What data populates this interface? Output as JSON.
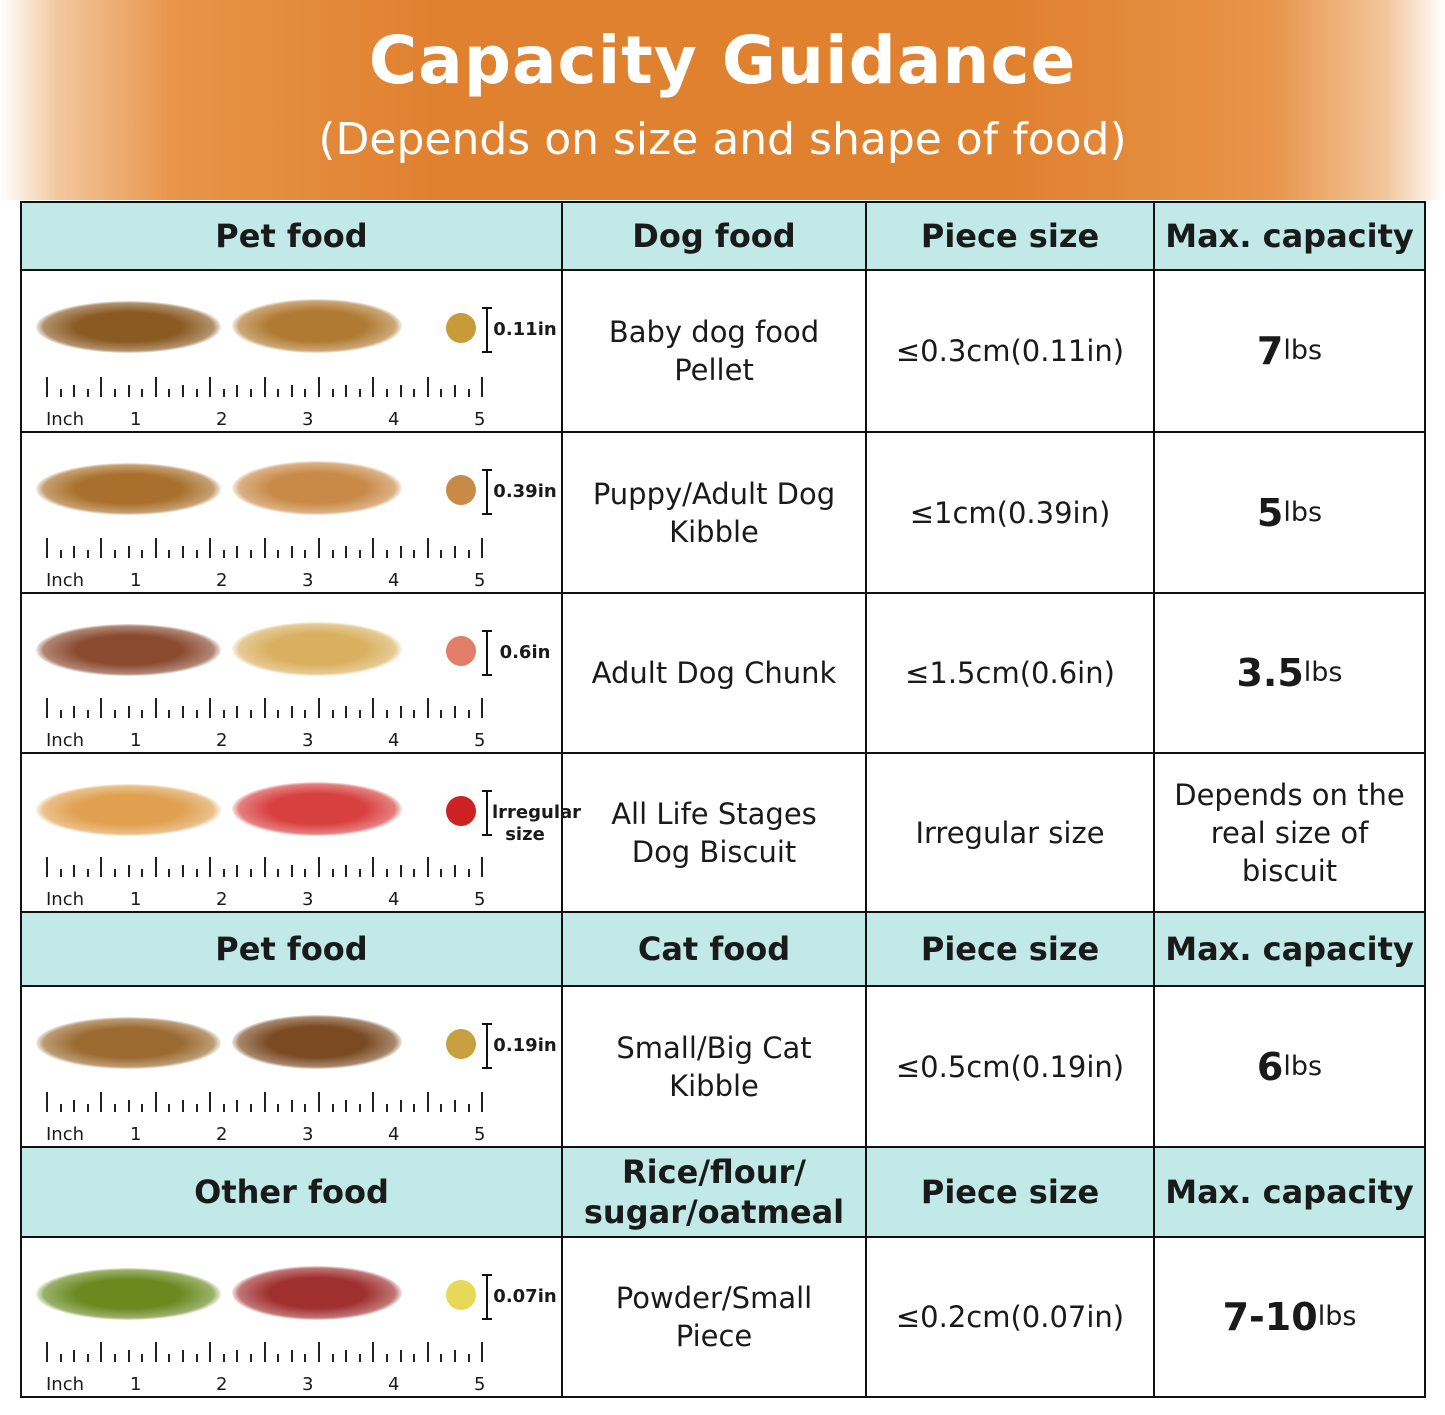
{
  "header": {
    "title": "Capacity Guidance",
    "subtitle": "(Depends on size and shape of food)"
  },
  "ruler": {
    "unit_label": "Inch",
    "ticks": [
      "1",
      "2",
      "3",
      "4",
      "5"
    ]
  },
  "sections": [
    {
      "header": [
        "Pet food",
        "Dog food",
        "Piece size",
        "Max. capacity"
      ],
      "rows": [
        {
          "piece_label": "0.11in",
          "food": "Baby dog food Pellet",
          "size": "≤0.3cm(0.11in)",
          "cap_value": "7",
          "cap_unit": "lbs",
          "colors": [
            "#8a5a22",
            "#b07a32",
            "#c99a3a"
          ]
        },
        {
          "piece_label": "0.39in",
          "food": "Puppy/Adult Dog Kibble",
          "size": "≤1cm(0.39in)",
          "cap_value": "5",
          "cap_unit": "lbs",
          "colors": [
            "#a8702c",
            "#c98a48",
            "#c98a48"
          ]
        },
        {
          "piece_label": "0.6in",
          "food": "Adult Dog Chunk",
          "size": "≤1.5cm(0.6in)",
          "cap_value": "3.5",
          "cap_unit": "lbs",
          "colors": [
            "#8a4a30",
            "#d9b060",
            "#e27d6a"
          ]
        },
        {
          "piece_label": "lrregular size",
          "food": "All Life Stages Dog Biscuit",
          "size": "Irregular size",
          "cap_text": "Depends on the real size of biscuit",
          "colors": [
            "#e0a050",
            "#d84040",
            "#cc2222"
          ]
        }
      ]
    },
    {
      "header": [
        "Pet food",
        "Cat food",
        "Piece size",
        "Max. capacity"
      ],
      "rows": [
        {
          "piece_label": "0.19in",
          "food": "Small/Big Cat Kibble",
          "size": "≤0.5cm(0.19in)",
          "cap_value": "6",
          "cap_unit": "lbs",
          "colors": [
            "#9a6a30",
            "#7a4a22",
            "#c8a040"
          ]
        }
      ]
    },
    {
      "header": [
        "Other food",
        "Rice/flour/ sugar/oatmeal",
        "Piece size",
        "Max. capacity"
      ],
      "rows": [
        {
          "piece_label": "0.07in",
          "food": "Powder/Small Piece",
          "size": "≤0.2cm(0.07in)",
          "cap_value": "7-10",
          "cap_unit": "lbs",
          "colors": [
            "#6a8a20",
            "#a03030",
            "#e8d858"
          ]
        }
      ]
    }
  ]
}
